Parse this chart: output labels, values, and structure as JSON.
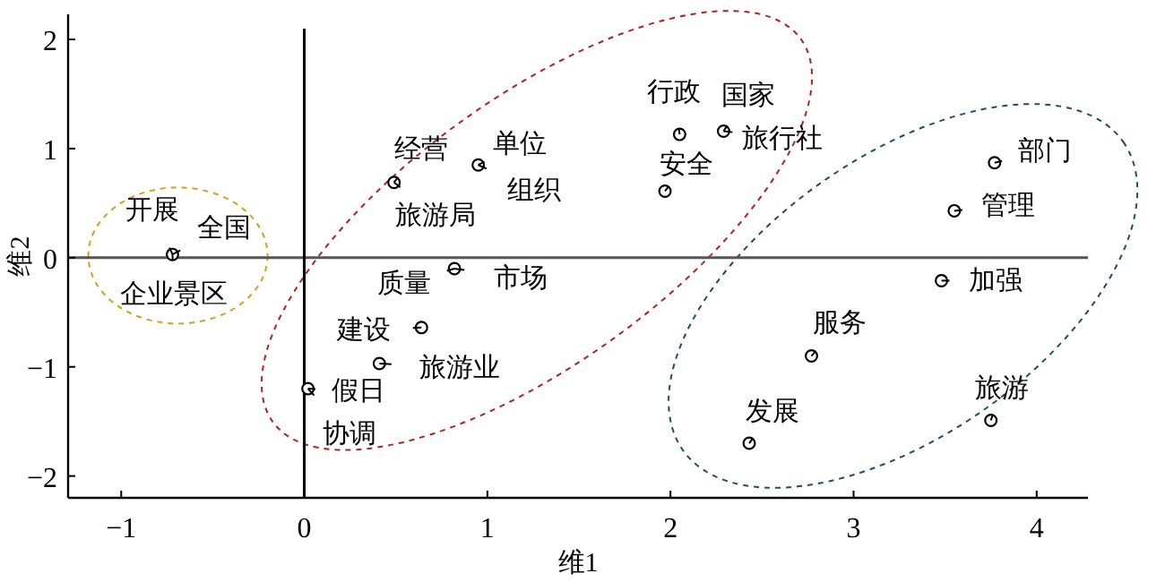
{
  "chart_data": {
    "type": "scatter",
    "xlabel": "维1",
    "ylabel": "维2",
    "xlim": [
      -1.29,
      4.28
    ],
    "ylim": [
      -2.2,
      2.23
    ],
    "xticks": [
      -1,
      0,
      1,
      2,
      3,
      4
    ],
    "yticks": [
      -2,
      -1,
      0,
      1,
      2
    ],
    "marker": "circle",
    "grid": false,
    "ref_lines": [
      {
        "axis": "y",
        "value": 0,
        "color": "#555555"
      },
      {
        "axis": "x",
        "value": 0,
        "color": "#000000"
      }
    ],
    "series": [
      {
        "color": "#000000",
        "x": [
          -0.72,
          0.49,
          0.95,
          0.82,
          0.64,
          0.41,
          0.02,
          2.05,
          2.29,
          1.97,
          3.77,
          3.55,
          3.48,
          2.77,
          3.75,
          2.43
        ],
        "values": [
          0.03,
          0.69,
          0.85,
          -0.1,
          -0.64,
          -0.97,
          -1.2,
          1.13,
          1.16,
          0.61,
          0.87,
          0.43,
          -0.21,
          -0.9,
          -1.49,
          -1.7
        ]
      }
    ],
    "annotations": [
      {
        "text": "开展",
        "x": -0.72,
        "y": 0.03
      },
      {
        "text": "全国",
        "x": -0.72,
        "y": 0.03
      },
      {
        "text": "企业景区",
        "x": -0.72,
        "y": 0.03
      },
      {
        "text": "经营",
        "x": 0.49,
        "y": 0.69
      },
      {
        "text": "旅游局",
        "x": 0.49,
        "y": 0.69
      },
      {
        "text": "单位",
        "x": 0.95,
        "y": 0.85
      },
      {
        "text": "组织",
        "x": 0.95,
        "y": 0.85
      },
      {
        "text": "质量",
        "x": 0.82,
        "y": -0.1
      },
      {
        "text": "市场",
        "x": 0.82,
        "y": -0.1
      },
      {
        "text": "建设",
        "x": 0.64,
        "y": -0.64
      },
      {
        "text": "旅游业",
        "x": 0.41,
        "y": -0.97
      },
      {
        "text": "假日",
        "x": 0.02,
        "y": -1.2
      },
      {
        "text": "协调",
        "x": 0.02,
        "y": -1.2
      },
      {
        "text": "行政",
        "x": 2.05,
        "y": 1.13
      },
      {
        "text": "国家",
        "x": 2.29,
        "y": 1.16
      },
      {
        "text": "旅行社",
        "x": 2.29,
        "y": 1.16
      },
      {
        "text": "安全",
        "x": 1.97,
        "y": 0.61
      },
      {
        "text": "部门",
        "x": 3.77,
        "y": 0.87
      },
      {
        "text": "管理",
        "x": 3.55,
        "y": 0.43
      },
      {
        "text": "加强",
        "x": 3.48,
        "y": -0.21
      },
      {
        "text": "服务",
        "x": 2.77,
        "y": -0.9
      },
      {
        "text": "旅游",
        "x": 3.75,
        "y": -1.49
      },
      {
        "text": "发展",
        "x": 2.43,
        "y": -1.7
      }
    ]
  }
}
